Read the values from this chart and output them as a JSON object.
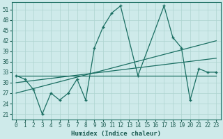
{
  "xlabel": "Humidex (Indice chaleur)",
  "bg_color": "#ceeaea",
  "line_color": "#1a6e62",
  "grid_color": "#aed4d0",
  "xlim": [
    -0.5,
    23.5
  ],
  "ylim": [
    19.5,
    53
  ],
  "yticks": [
    21,
    24,
    27,
    30,
    33,
    36,
    39,
    42,
    45,
    48,
    51
  ],
  "xticks": [
    0,
    1,
    2,
    3,
    4,
    5,
    6,
    7,
    8,
    9,
    10,
    11,
    12,
    13,
    14,
    15,
    16,
    17,
    18,
    19,
    20,
    21,
    22,
    23
  ],
  "data_x": [
    0,
    1,
    2,
    3,
    4,
    5,
    6,
    7,
    8,
    9,
    10,
    11,
    12,
    14,
    17,
    18,
    19,
    20,
    21,
    22,
    23
  ],
  "data_y": [
    32,
    31,
    28,
    21,
    27,
    25,
    27,
    31,
    25,
    40,
    46,
    50,
    52,
    32,
    52,
    43,
    40,
    25,
    34,
    33,
    33
  ],
  "trend1_x": [
    0,
    23
  ],
  "trend1_y": [
    32,
    32
  ],
  "trend2_x": [
    0,
    23
  ],
  "trend2_y": [
    30,
    37
  ],
  "trend3_x": [
    0,
    23
  ],
  "trend3_y": [
    27,
    42
  ]
}
